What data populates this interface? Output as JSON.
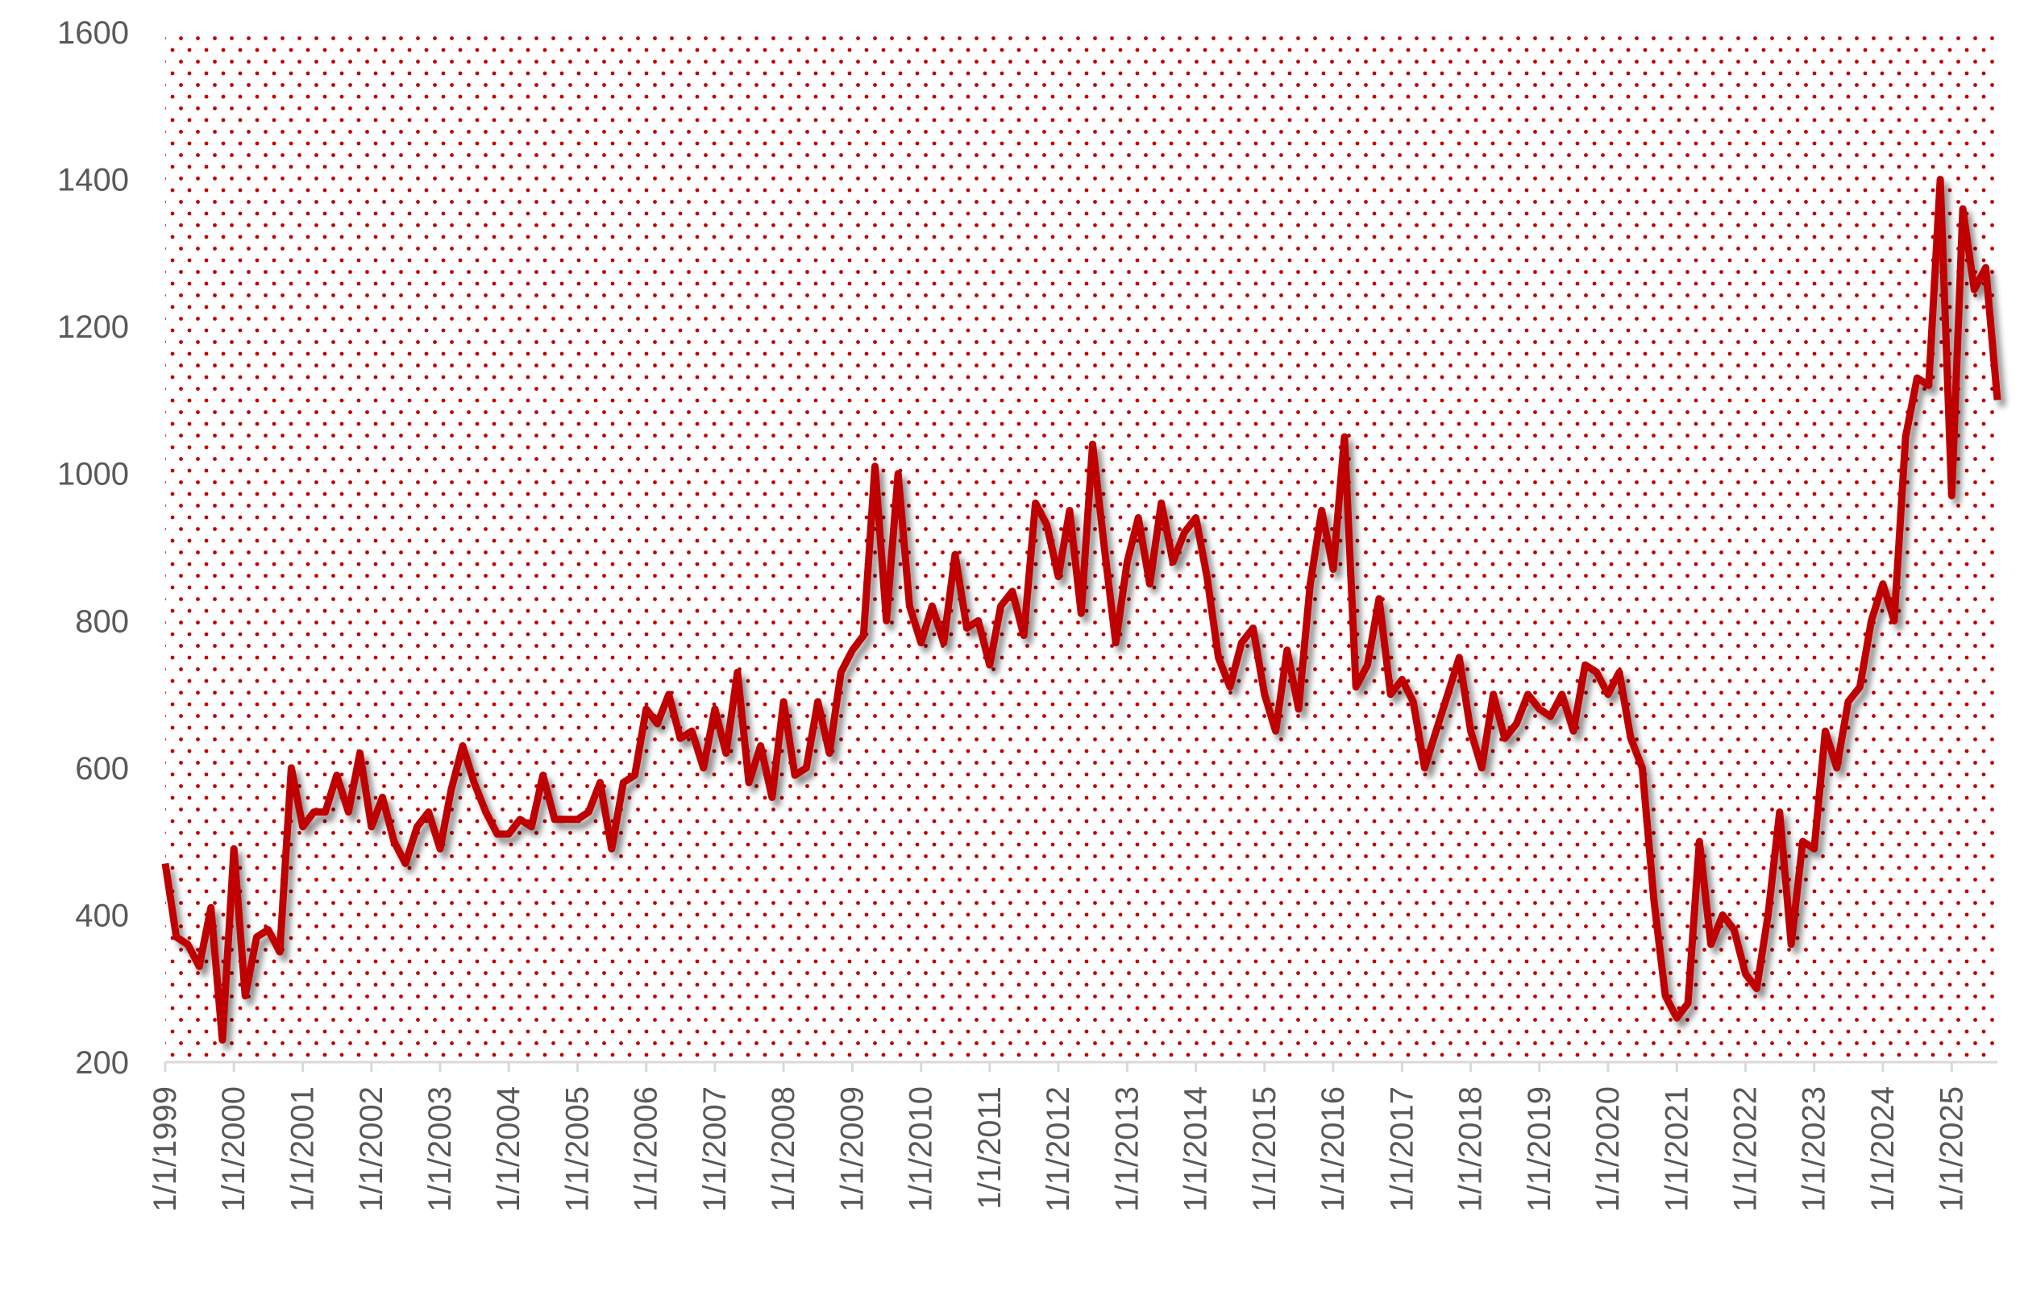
{
  "chart_data": {
    "type": "line",
    "color": "#c00000",
    "x": [
      "1999-01-01",
      "1999-03-01",
      "1999-05-01",
      "1999-07-01",
      "1999-09-01",
      "1999-11-01",
      "2000-01-01",
      "2000-03-01",
      "2000-05-01",
      "2000-07-01",
      "2000-09-01",
      "2000-11-01",
      "2001-01-01",
      "2001-03-01",
      "2001-05-01",
      "2001-07-01",
      "2001-09-01",
      "2001-11-01",
      "2002-01-01",
      "2002-03-01",
      "2002-05-01",
      "2002-07-01",
      "2002-09-01",
      "2002-11-01",
      "2003-01-01",
      "2003-03-01",
      "2003-05-01",
      "2003-07-01",
      "2003-09-01",
      "2003-11-01",
      "2004-01-01",
      "2004-03-01",
      "2004-05-01",
      "2004-07-01",
      "2004-09-01",
      "2004-11-01",
      "2005-01-01",
      "2005-03-01",
      "2005-05-01",
      "2005-07-01",
      "2005-09-01",
      "2005-11-01",
      "2006-01-01",
      "2006-03-01",
      "2006-05-01",
      "2006-07-01",
      "2006-09-01",
      "2006-11-01",
      "2007-01-01",
      "2007-03-01",
      "2007-05-01",
      "2007-07-01",
      "2007-09-01",
      "2007-11-01",
      "2008-01-01",
      "2008-03-01",
      "2008-05-01",
      "2008-07-01",
      "2008-09-01",
      "2008-11-01",
      "2009-01-01",
      "2009-03-01",
      "2009-05-01",
      "2009-07-01",
      "2009-09-01",
      "2009-11-01",
      "2010-01-01",
      "2010-03-01",
      "2010-05-01",
      "2010-07-01",
      "2010-09-01",
      "2010-11-01",
      "2011-01-01",
      "2011-03-01",
      "2011-05-01",
      "2011-07-01",
      "2011-09-01",
      "2011-11-01",
      "2012-01-01",
      "2012-03-01",
      "2012-05-01",
      "2012-07-01",
      "2012-09-01",
      "2012-11-01",
      "2013-01-01",
      "2013-03-01",
      "2013-05-01",
      "2013-07-01",
      "2013-09-01",
      "2013-11-01",
      "2014-01-01",
      "2014-03-01",
      "2014-05-01",
      "2014-07-01",
      "2014-09-01",
      "2014-11-01",
      "2015-01-01",
      "2015-03-01",
      "2015-05-01",
      "2015-07-01",
      "2015-09-01",
      "2015-11-01",
      "2016-01-01",
      "2016-03-01",
      "2016-05-01",
      "2016-07-01",
      "2016-09-01",
      "2016-11-01",
      "2017-01-01",
      "2017-03-01",
      "2017-05-01",
      "2017-07-01",
      "2017-09-01",
      "2017-11-01",
      "2018-01-01",
      "2018-03-01",
      "2018-05-01",
      "2018-07-01",
      "2018-09-01",
      "2018-11-01",
      "2019-01-01",
      "2019-03-01",
      "2019-05-01",
      "2019-07-01",
      "2019-09-01",
      "2019-11-01",
      "2020-01-01",
      "2020-03-01",
      "2020-05-01",
      "2020-07-01",
      "2020-09-01",
      "2020-11-01",
      "2021-01-01",
      "2021-03-01",
      "2021-05-01",
      "2021-07-01",
      "2021-09-01",
      "2021-11-01",
      "2022-01-01",
      "2022-03-01",
      "2022-05-01",
      "2022-07-01",
      "2022-09-01",
      "2022-11-01",
      "2023-01-01",
      "2023-03-01",
      "2023-05-01",
      "2023-07-01",
      "2023-09-01",
      "2023-11-01",
      "2024-01-01",
      "2024-03-01",
      "2024-05-01",
      "2024-07-01",
      "2024-09-01",
      "2024-11-01",
      "2025-01-01",
      "2025-03-01",
      "2025-05-01",
      "2025-07-01",
      "2025-09-01"
    ],
    "values": [
      470,
      370,
      360,
      330,
      410,
      230,
      490,
      290,
      370,
      380,
      350,
      600,
      520,
      540,
      540,
      590,
      540,
      620,
      520,
      560,
      500,
      470,
      520,
      540,
      490,
      570,
      630,
      580,
      540,
      510,
      510,
      530,
      520,
      590,
      530,
      530,
      530,
      540,
      580,
      490,
      580,
      590,
      680,
      660,
      700,
      640,
      650,
      600,
      680,
      620,
      730,
      580,
      630,
      560,
      690,
      590,
      600,
      690,
      620,
      730,
      760,
      780,
      1010,
      800,
      1000,
      820,
      770,
      820,
      770,
      890,
      790,
      800,
      740,
      820,
      840,
      780,
      960,
      930,
      860,
      950,
      810,
      1040,
      900,
      770,
      880,
      940,
      850,
      960,
      880,
      920,
      940,
      860,
      750,
      710,
      770,
      790,
      700,
      650,
      760,
      680,
      850,
      950,
      870,
      1050,
      710,
      740,
      830,
      700,
      720,
      690,
      600,
      650,
      700,
      750,
      650,
      600,
      700,
      640,
      660,
      700,
      680,
      670,
      700,
      650,
      740,
      730,
      700,
      730,
      640,
      600,
      420,
      290,
      260,
      280,
      500,
      360,
      400,
      380,
      320,
      300,
      400,
      540,
      360,
      500,
      490,
      650,
      600,
      690,
      710,
      800,
      850,
      800,
      1050,
      1130,
      1120,
      1400,
      970,
      1360,
      1250,
      1280,
      1100
    ],
    "xlim": [
      "1999-01-01",
      "2025-09-01"
    ],
    "xticks": [
      {
        "value": "1999-01-01",
        "label": "1/1/1999"
      },
      {
        "value": "2000-01-01",
        "label": "1/1/2000"
      },
      {
        "value": "2001-01-01",
        "label": "1/1/2001"
      },
      {
        "value": "2002-01-01",
        "label": "1/1/2002"
      },
      {
        "value": "2003-01-01",
        "label": "1/1/2003"
      },
      {
        "value": "2004-01-01",
        "label": "1/1/2004"
      },
      {
        "value": "2005-01-01",
        "label": "1/1/2005"
      },
      {
        "value": "2006-01-01",
        "label": "1/1/2006"
      },
      {
        "value": "2007-01-01",
        "label": "1/1/2007"
      },
      {
        "value": "2008-01-01",
        "label": "1/1/2008"
      },
      {
        "value": "2009-01-01",
        "label": "1/1/2009"
      },
      {
        "value": "2010-01-01",
        "label": "1/1/2010"
      },
      {
        "value": "2011-01-01",
        "label": "1/1/2011"
      },
      {
        "value": "2012-01-01",
        "label": "1/1/2012"
      },
      {
        "value": "2013-01-01",
        "label": "1/1/2013"
      },
      {
        "value": "2014-01-01",
        "label": "1/1/2014"
      },
      {
        "value": "2015-01-01",
        "label": "1/1/2015"
      },
      {
        "value": "2016-01-01",
        "label": "1/1/2016"
      },
      {
        "value": "2017-01-01",
        "label": "1/1/2017"
      },
      {
        "value": "2018-01-01",
        "label": "1/1/2018"
      },
      {
        "value": "2019-01-01",
        "label": "1/1/2019"
      },
      {
        "value": "2020-01-01",
        "label": "1/1/2020"
      },
      {
        "value": "2021-01-01",
        "label": "1/1/2021"
      },
      {
        "value": "2022-01-01",
        "label": "1/1/2022"
      },
      {
        "value": "2023-01-01",
        "label": "1/1/2023"
      },
      {
        "value": "2024-01-01",
        "label": "1/1/2024"
      },
      {
        "value": "2025-01-01",
        "label": "1/1/2025"
      }
    ],
    "ylim": [
      200,
      1600
    ],
    "yticks": [
      200,
      400,
      600,
      800,
      1000,
      1200,
      1400,
      1600
    ]
  }
}
